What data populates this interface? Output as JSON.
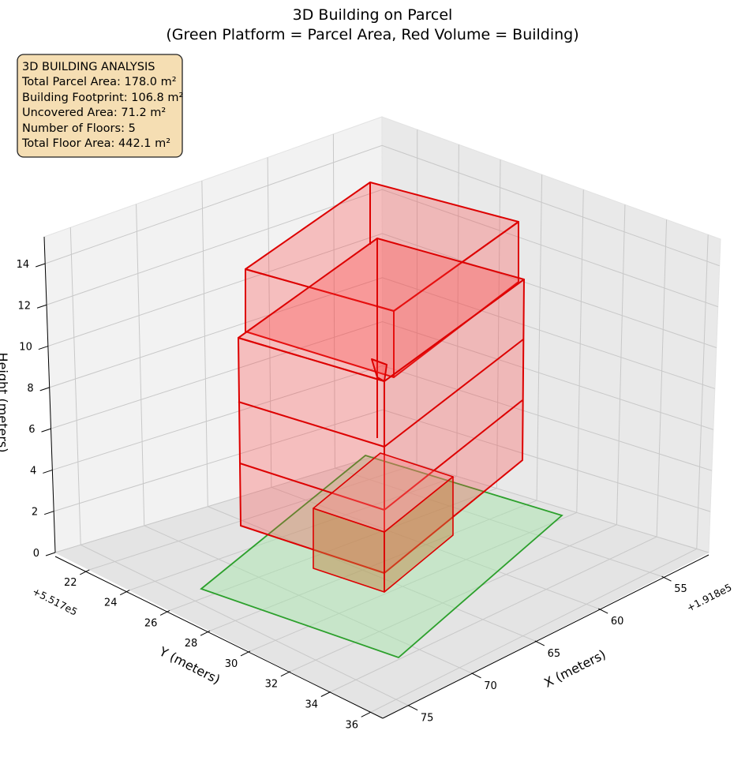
{
  "chart_data": {
    "type": "3d-polygons",
    "title": "3D Building on Parcel",
    "subtitle": "(Green Platform = Parcel Area, Red Volume = Building)",
    "xlabel": "X (meters)",
    "ylabel": "Y (meters)",
    "zlabel": "Height (meters)",
    "x_offset": "+1.918e5",
    "y_offset": "+5.517e5",
    "x_ticks": [
      "55",
      "60",
      "65",
      "70",
      "75"
    ],
    "y_ticks": [
      "22",
      "24",
      "26",
      "28",
      "30",
      "32",
      "34",
      "36"
    ],
    "z_ticks": [
      "0",
      "2",
      "4",
      "6",
      "8",
      "10",
      "12",
      "14"
    ],
    "colors": {
      "parcel": "#2ca02c",
      "building": "#ff0000"
    },
    "info_box": {
      "title": "3D BUILDING ANALYSIS",
      "lines": [
        "Total Parcel Area: 178.0 m²",
        "Building Footprint: 106.8 m²",
        "Uncovered Area: 71.2 m²",
        "Number of Floors: 5",
        "Total Floor Area: 442.1 m²"
      ]
    }
  }
}
